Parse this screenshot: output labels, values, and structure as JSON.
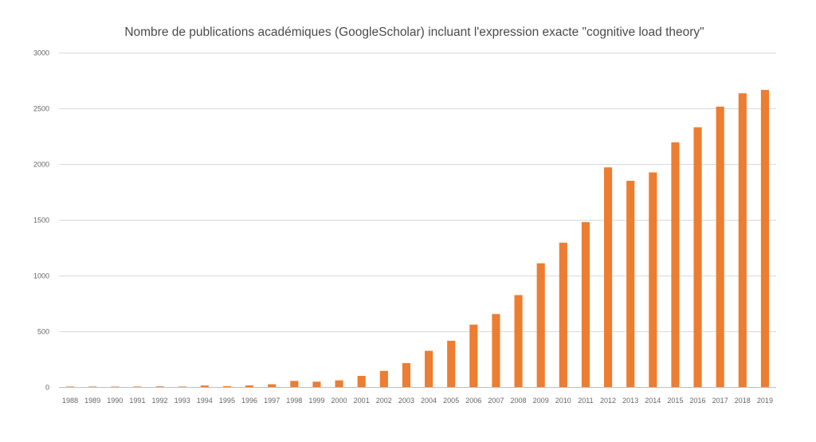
{
  "chart_data": {
    "type": "bar",
    "title": "Nombre de publications académiques (GoogleScholar) incluant l'expression exacte \"cognitive load theory\"",
    "xlabel": "",
    "ylabel": "",
    "ylim": [
      0,
      3000
    ],
    "yticks": [
      "0",
      "500",
      "1000",
      "1500",
      "2000",
      "2500",
      "3000"
    ],
    "grid": true,
    "legend": "none",
    "bar_color": "#ED7D31",
    "categories": [
      "1988",
      "1989",
      "1990",
      "1991",
      "1992",
      "1993",
      "1994",
      "1995",
      "1996",
      "1997",
      "1998",
      "1999",
      "2000",
      "2001",
      "2002",
      "2003",
      "2004",
      "2005",
      "2006",
      "2007",
      "2008",
      "2009",
      "2010",
      "2011",
      "2012",
      "2013",
      "2014",
      "2015",
      "2016",
      "2017",
      "2018",
      "2019"
    ],
    "values": [
      1,
      1,
      2,
      1,
      6,
      2,
      14,
      8,
      15,
      25,
      55,
      48,
      60,
      100,
      145,
      215,
      325,
      415,
      560,
      655,
      825,
      1110,
      1295,
      1480,
      1970,
      1850,
      1925,
      2195,
      2330,
      2515,
      2635,
      2665
    ]
  }
}
